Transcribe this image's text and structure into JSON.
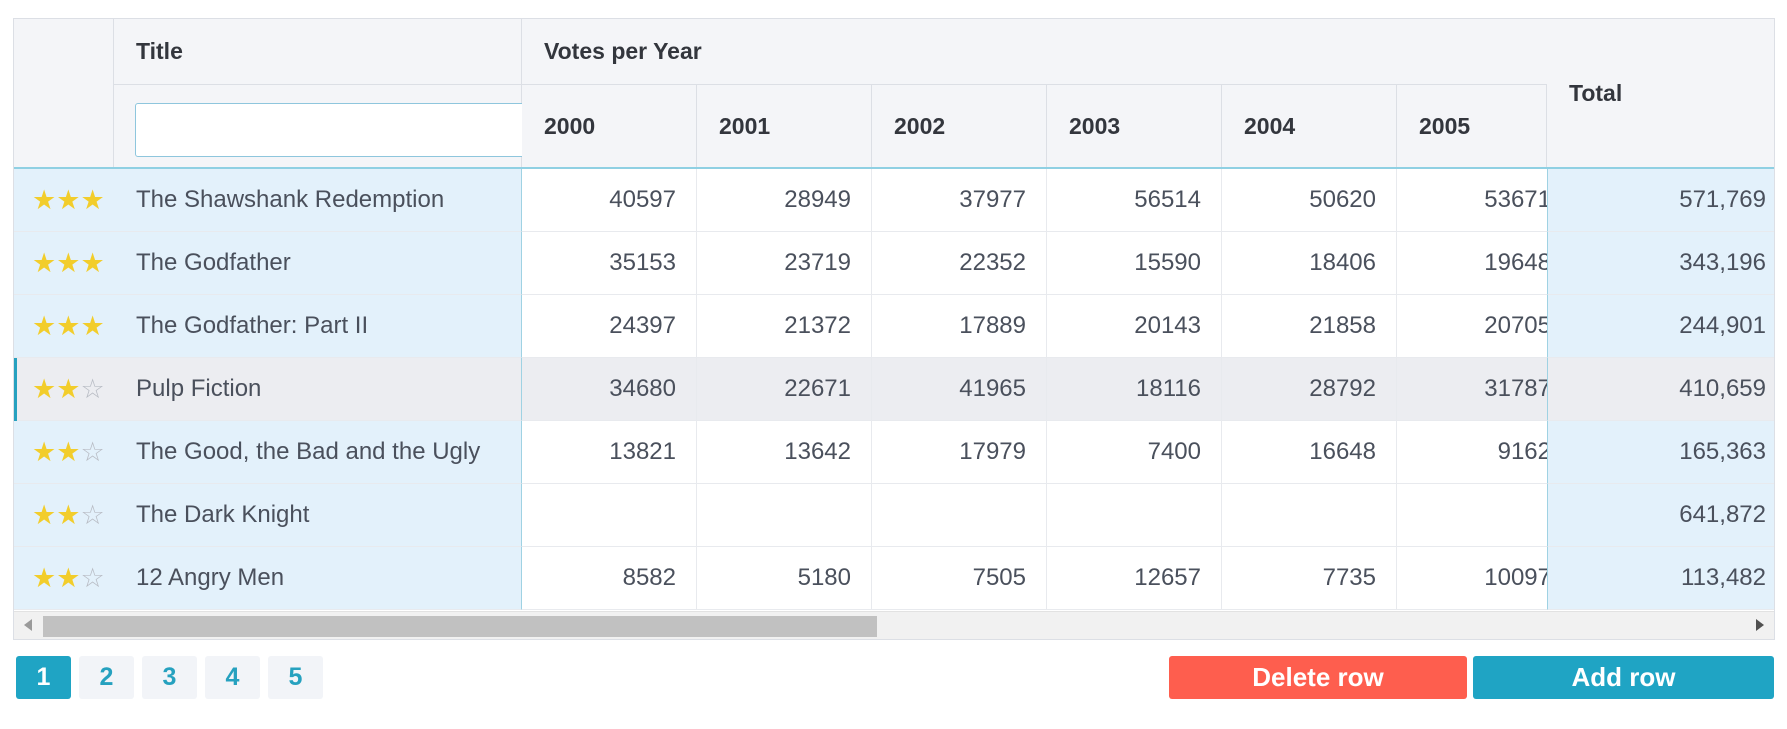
{
  "grid": {
    "headers": {
      "title": "Title",
      "group": "Votes per Year",
      "years": [
        "2000",
        "2001",
        "2002",
        "2003",
        "2004",
        "2005"
      ],
      "total": "Total"
    },
    "filter": {
      "value": "",
      "placeholder": ""
    },
    "rows": [
      {
        "stars": 3,
        "title": "The Shawshank Redemption",
        "votes": [
          "40597",
          "28949",
          "37977",
          "56514",
          "50620",
          "53671"
        ],
        "total": "571,769",
        "selected": false
      },
      {
        "stars": 3,
        "title": "The Godfather",
        "votes": [
          "35153",
          "23719",
          "22352",
          "15590",
          "18406",
          "19648"
        ],
        "total": "343,196",
        "selected": false
      },
      {
        "stars": 3,
        "title": "The Godfather: Part II",
        "votes": [
          "24397",
          "21372",
          "17889",
          "20143",
          "21858",
          "20705"
        ],
        "total": "244,901",
        "selected": false
      },
      {
        "stars": 2,
        "title": "Pulp Fiction",
        "votes": [
          "34680",
          "22671",
          "41965",
          "18116",
          "28792",
          "31787"
        ],
        "total": "410,659",
        "selected": true
      },
      {
        "stars": 2,
        "title": "The Good, the Bad and the Ugly",
        "votes": [
          "13821",
          "13642",
          "17979",
          "7400",
          "16648",
          "9162"
        ],
        "total": "165,363",
        "selected": false
      },
      {
        "stars": 2,
        "title": "The Dark Knight",
        "votes": [
          "",
          "",
          "",
          "",
          "",
          ""
        ],
        "total": "641,872",
        "selected": false
      },
      {
        "stars": 2,
        "title": "12 Angry Men",
        "votes": [
          "8582",
          "5180",
          "7505",
          "12657",
          "7735",
          "10097"
        ],
        "total": "113,482",
        "selected": false
      }
    ],
    "max_stars": 3,
    "scroll_fraction": 0.49
  },
  "pager": {
    "pages": [
      "1",
      "2",
      "3",
      "4",
      "5"
    ],
    "active": "1"
  },
  "actions": {
    "delete_label": "Delete row",
    "add_label": "Add row"
  },
  "colors": {
    "accent": "#1fa4c4",
    "danger": "#fe5e4e",
    "star": "#f2cd2b",
    "selection": "#e3f1fb"
  },
  "icons": {
    "star_filled": "star-filled-icon",
    "star_empty": "star-empty-icon",
    "scroll_left": "arrow-left-icon",
    "scroll_right": "arrow-right-icon"
  }
}
